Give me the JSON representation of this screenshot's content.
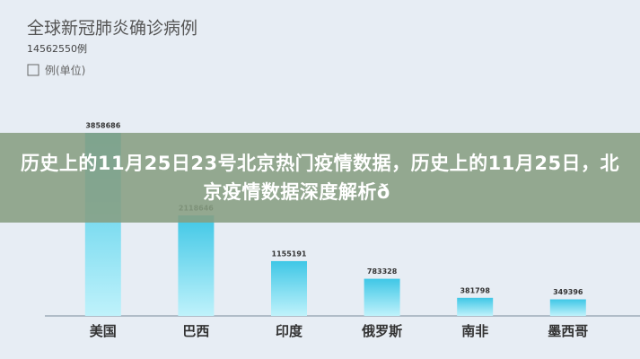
{
  "headline": "历史上的11月25日23号北京热门疫情数据，历史上的11月25日，北京疫情数据深度解析ð",
  "chart_data": {
    "type": "bar",
    "title": "全球新冠肺炎确诊病例",
    "subtitle": "14562550例",
    "legend": "例(单位)",
    "categories": [
      "美国",
      "巴西",
      "印度",
      "俄罗斯",
      "南非",
      "墨西哥"
    ],
    "values": [
      3858686,
      2118646,
      1155191,
      783328,
      381798,
      349396
    ],
    "color": "#4fd3ec"
  }
}
